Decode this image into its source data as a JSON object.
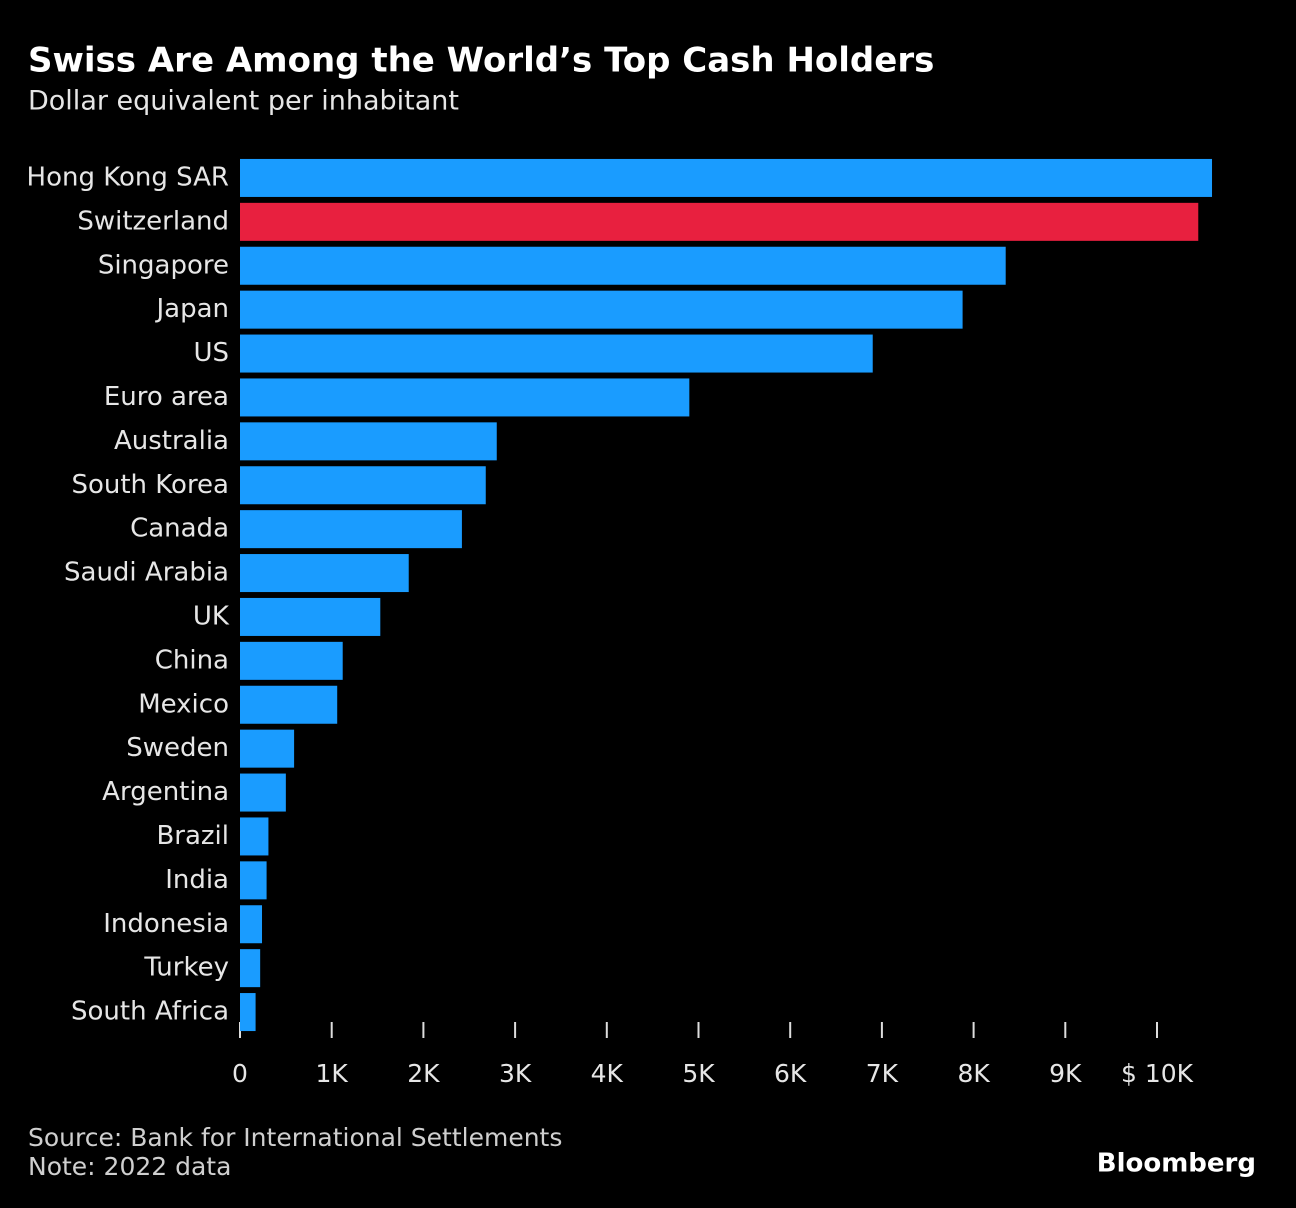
{
  "chart_data": {
    "type": "hbar",
    "title": "Swiss Are Among the World’s Top Cash Holders",
    "subtitle": "Dollar equivalent per inhabitant",
    "categories": [
      "Hong Kong SAR",
      "Switzerland",
      "Singapore",
      "Japan",
      "US",
      "Euro area",
      "Australia",
      "South Korea",
      "Canada",
      "Saudi Arabia",
      "UK",
      "China",
      "Mexico",
      "Sweden",
      "Argentina",
      "Brazil",
      "India",
      "Indonesia",
      "Turkey",
      "South Africa"
    ],
    "values": [
      10600,
      10450,
      8350,
      7880,
      6900,
      4900,
      2800,
      2680,
      2420,
      1840,
      1530,
      1120,
      1060,
      590,
      500,
      310,
      290,
      240,
      220,
      170
    ],
    "colors": [
      "#1a9cff",
      "#e8203f",
      "#1a9cff",
      "#1a9cff",
      "#1a9cff",
      "#1a9cff",
      "#1a9cff",
      "#1a9cff",
      "#1a9cff",
      "#1a9cff",
      "#1a9cff",
      "#1a9cff",
      "#1a9cff",
      "#1a9cff",
      "#1a9cff",
      "#1a9cff",
      "#1a9cff",
      "#1a9cff",
      "#1a9cff",
      "#1a9cff"
    ],
    "xlim": [
      0,
      10600
    ],
    "xticks": [
      0,
      {
        "value": 1000,
        "label": "1K"
      },
      {
        "value": 2000,
        "label": "2K"
      },
      {
        "value": 3000,
        "label": "3K"
      },
      {
        "value": 4000,
        "label": "4K"
      },
      {
        "value": 5000,
        "label": "5K"
      },
      {
        "value": 6000,
        "label": "6K"
      },
      {
        "value": 7000,
        "label": "7K"
      },
      {
        "value": 8000,
        "label": "8K"
      },
      {
        "value": 9000,
        "label": "9K"
      },
      {
        "value": 10000,
        "label": "$ 10K"
      }
    ],
    "grid": false,
    "source": "Source: Bank for International Settlements",
    "note": "Note: 2022 data",
    "brand": "Bloomberg"
  }
}
